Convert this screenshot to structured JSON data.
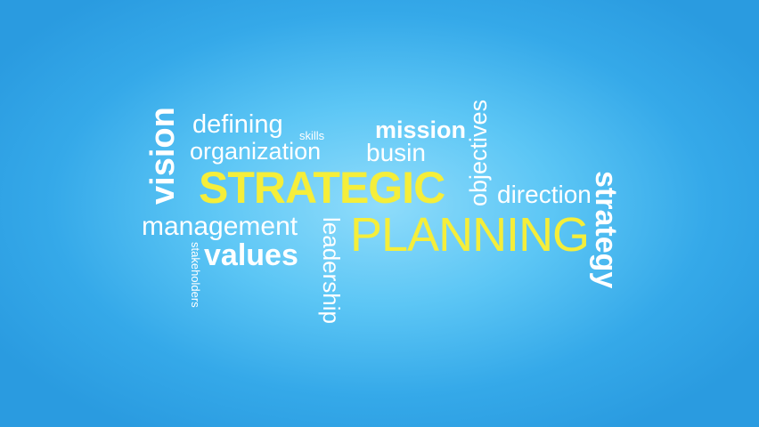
{
  "words": {
    "vision": "vision",
    "defining": "defining",
    "organization": "organization",
    "skills": "skills",
    "mission": "mission",
    "busin": "busin",
    "objectives": "objectives",
    "strategic": "STRATEGIC",
    "direction": "direction",
    "strategy": "strategy",
    "management": "management",
    "leadership": "leadership",
    "planning": "PLANNING",
    "values": "values",
    "stakeholders": "stakeholders"
  },
  "colors": {
    "background_center": "#8fdcfb",
    "background_edge": "#2a9be0",
    "text_white": "#ffffff",
    "text_yellow": "#f5ee3a"
  }
}
